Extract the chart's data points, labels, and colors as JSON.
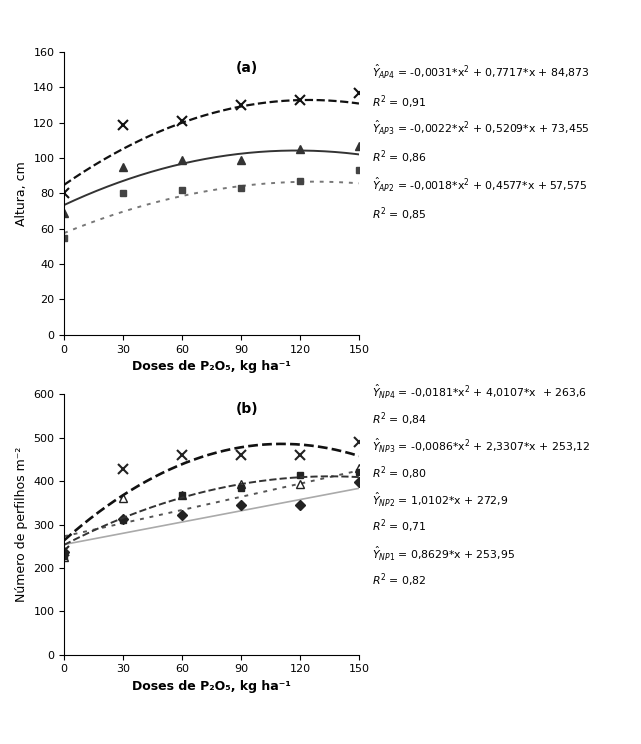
{
  "panel_a": {
    "title": "(a)",
    "xlabel": "Doses de P₂O₅, kg ha⁻¹",
    "ylabel": "Altura, cm",
    "ylim": [
      0,
      160
    ],
    "yticks": [
      0,
      20,
      40,
      60,
      80,
      100,
      120,
      140,
      160
    ],
    "xlim": [
      0,
      150
    ],
    "xticks": [
      0,
      30,
      60,
      90,
      120,
      150
    ],
    "doses": [
      0,
      30,
      60,
      90,
      120,
      150
    ],
    "AP2_data": [
      55,
      80,
      82,
      83,
      87,
      93
    ],
    "AP2_eq": [
      -0.0018,
      0.4577,
      57.575
    ],
    "AP3_data": [
      69,
      95,
      99,
      99,
      105,
      107
    ],
    "AP3_eq": [
      -0.0022,
      0.5209,
      73.455
    ],
    "AP4_data": [
      80,
      119,
      121,
      130,
      133,
      137
    ],
    "AP4_eq": [
      -0.0031,
      0.7717,
      84.873
    ],
    "annot_a1": "= -0,0031*x",
    "annot_a1_end": " + 0,7717*x + 84,873",
    "annot_a2": "R",
    "annot_a2_end": " = 0,91",
    "annot_a3": "= -0,0022*x",
    "annot_a3_end": " + 0,5209*x + 73,455",
    "annot_a4": "R",
    "annot_a4_end": " = 0,86",
    "annot_a5": "= -0,0018*x",
    "annot_a5_end": " + 0,4577*x + 57,575",
    "annot_a6": "R",
    "annot_a6_end": " = 0,85"
  },
  "panel_b": {
    "title": "(b)",
    "xlabel": "Doses de P₂O₅, kg ha⁻¹",
    "ylabel": "Número de perfilhos m⁻²",
    "ylim": [
      0,
      600
    ],
    "yticks": [
      0,
      100,
      200,
      300,
      400,
      500,
      600
    ],
    "xlim": [
      0,
      150
    ],
    "xticks": [
      0,
      30,
      60,
      90,
      120,
      150
    ],
    "doses": [
      0,
      30,
      60,
      90,
      120,
      150
    ],
    "NP1_data": [
      237,
      313,
      323,
      345,
      345,
      397
    ],
    "NP1_eq": [
      0.0,
      0.8629,
      253.95
    ],
    "NP2_data": [
      227,
      310,
      367,
      383,
      413,
      420
    ],
    "NP2_eq": [
      0.0,
      1.0102,
      272.9
    ],
    "NP3_data": [
      225,
      360,
      367,
      393,
      393,
      430
    ],
    "NP3_eq": [
      -0.0086,
      2.3307,
      253.12
    ],
    "NP4_data": [
      240,
      427,
      460,
      460,
      460,
      490
    ],
    "NP4_eq": [
      -0.0181,
      4.0107,
      263.6
    ]
  },
  "fig_width": 6.41,
  "fig_height": 7.44,
  "dpi": 100
}
